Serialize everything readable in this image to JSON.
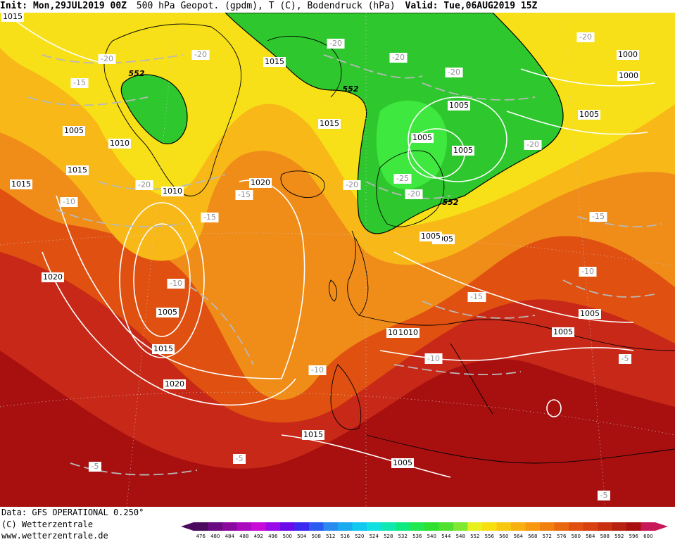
{
  "header": {
    "init": "Init: Mon,29JUL2019 00Z",
    "title": "500 hPa Geopot. (gpdm), T (C), Bodendruck (hPa)",
    "valid": "Valid: Tue,06AUG2019 15Z"
  },
  "footer": {
    "data_line": "Data: GFS OPERATIONAL 0.250°",
    "copyright": "(C) Wetterzentrale",
    "url": "www.wetterzentrale.de"
  },
  "scale": {
    "values": [
      "476",
      "480",
      "484",
      "488",
      "492",
      "496",
      "500",
      "504",
      "508",
      "512",
      "516",
      "520",
      "524",
      "528",
      "532",
      "536",
      "540",
      "544",
      "548",
      "552",
      "556",
      "560",
      "564",
      "568",
      "572",
      "576",
      "580",
      "584",
      "588",
      "592",
      "596",
      "600"
    ],
    "colors": [
      "#4a0a5e",
      "#6a0a80",
      "#8a0aa0",
      "#aa0ac0",
      "#c80ad8",
      "#9a0ae8",
      "#6a0ae8",
      "#3a2af0",
      "#2a5af0",
      "#2a8af0",
      "#1aaaf0",
      "#10c8f0",
      "#10e0e0",
      "#10e8b0",
      "#10e880",
      "#20e850",
      "#30e030",
      "#50e030",
      "#80e830",
      "#e8f020",
      "#f8e010",
      "#f8c810",
      "#f8b010",
      "#f89810",
      "#f08010",
      "#e86810",
      "#e05010",
      "#d84010",
      "#c83010",
      "#b82010",
      "#a81010",
      "#c81858"
    ]
  },
  "map": {
    "colors": {
      "green_dark": "#2ec82e",
      "green_light": "#3ee83e",
      "yellow": "#f8e818",
      "orange": "#f0a018",
      "red": "#c82818",
      "darkred": "#a81010"
    },
    "pressure_labels": [
      "1015",
      "1005",
      "1010",
      "1015",
      "1020",
      "1010",
      "1005",
      "1015",
      "1020",
      "1015",
      "1005",
      "1010",
      "1015",
      "1005",
      "1000",
      "1005",
      "1000",
      "1005",
      "1005",
      "1010",
      "1005",
      "1005",
      "1015",
      "1005",
      "1020",
      "1015",
      "1005"
    ],
    "temp_labels": [
      "-20",
      "-20",
      "-15",
      "-20",
      "-20",
      "-20",
      "-20",
      "-20",
      "-10",
      "-20",
      "-15",
      "-15",
      "-10",
      "-20",
      "-25",
      "-20",
      "-15",
      "-10",
      "-15",
      "-10",
      "-10",
      "-15",
      "-5",
      "-5",
      "-5",
      "-5",
      "-10"
    ],
    "contour_labels": [
      "552",
      "552",
      "552"
    ]
  }
}
